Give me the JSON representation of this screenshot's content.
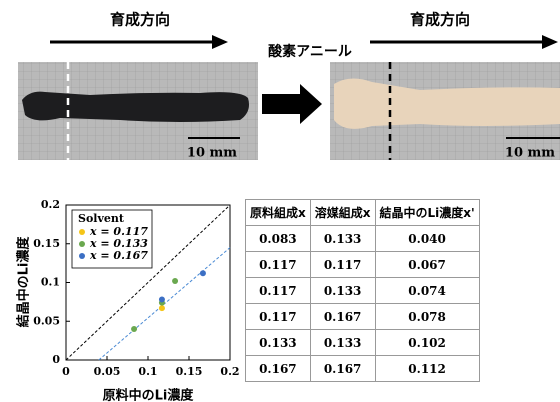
{
  "photos": {
    "left": {
      "header": "育成方向",
      "scale": "10 mm"
    },
    "annotation": "酸素アニール",
    "right": {
      "header": "育成方向",
      "scale": "10 mm"
    }
  },
  "chart_data": {
    "type": "scatter",
    "ylabel": "結晶中のLi濃度",
    "xlabel": "原料中のLi濃度",
    "legend_title": "Solvent",
    "xlim": [
      0,
      0.2
    ],
    "ylim": [
      0,
      0.2
    ],
    "xticks": [
      0,
      0.05,
      0.1,
      0.15,
      0.2
    ],
    "yticks": [
      0,
      0.05,
      0.1,
      0.15,
      0.2
    ],
    "series": [
      {
        "name": "x = 0.117",
        "color": "#f5c518",
        "x": [
          0.117
        ],
        "values": [
          0.067
        ]
      },
      {
        "name": "x = 0.133",
        "color": "#6aa84f",
        "x": [
          0.083,
          0.117,
          0.133
        ],
        "values": [
          0.04,
          0.074,
          0.102
        ]
      },
      {
        "name": "x = 0.167",
        "color": "#3c6fc4",
        "x": [
          0.117,
          0.167
        ],
        "values": [
          0.078,
          0.112
        ]
      }
    ],
    "reference_lines": [
      {
        "color": "#000000",
        "x": [
          0,
          0.2
        ],
        "values": [
          0,
          0.2
        ]
      },
      {
        "color": "#4a8ad4",
        "x": [
          0.04,
          0.2
        ],
        "values": [
          0,
          0.145
        ]
      }
    ]
  },
  "table": {
    "columns": [
      "原料組成x",
      "溶媒組成x",
      "結晶中のLi濃度x'"
    ],
    "rows": [
      [
        "0.083",
        "0.133",
        "0.040"
      ],
      [
        "0.117",
        "0.117",
        "0.067"
      ],
      [
        "0.117",
        "0.133",
        "0.074"
      ],
      [
        "0.117",
        "0.167",
        "0.078"
      ],
      [
        "0.133",
        "0.133",
        "0.102"
      ],
      [
        "0.167",
        "0.167",
        "0.112"
      ]
    ]
  }
}
